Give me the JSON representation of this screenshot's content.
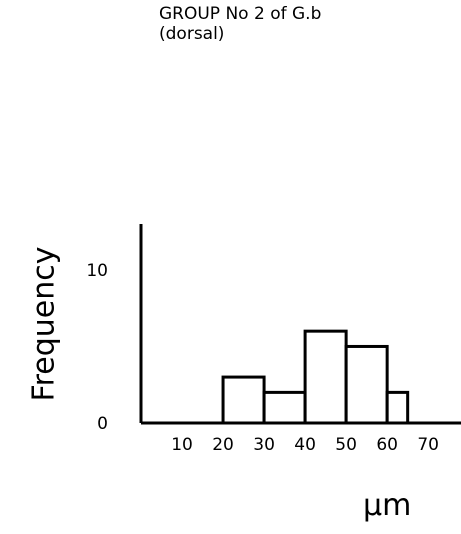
{
  "chart_data": {
    "type": "bar",
    "title": "GROUP No 2 of G.b",
    "subtitle": "(dorsal)",
    "xlabel": "µm",
    "ylabel": "Frequency",
    "xticks": [
      10,
      20,
      30,
      40,
      50,
      60,
      70
    ],
    "yticks": [
      0,
      10
    ],
    "xlim": [
      0,
      78
    ],
    "ylim": [
      0,
      13
    ],
    "bins": [
      {
        "x0": 20,
        "x1": 30,
        "value": 3
      },
      {
        "x0": 30,
        "x1": 40,
        "value": 2
      },
      {
        "x0": 40,
        "x1": 50,
        "value": 6
      },
      {
        "x0": 50,
        "x1": 60,
        "value": 5
      },
      {
        "x0": 60,
        "x1": 65,
        "value": 2
      }
    ],
    "grid": false,
    "legend": "none"
  }
}
